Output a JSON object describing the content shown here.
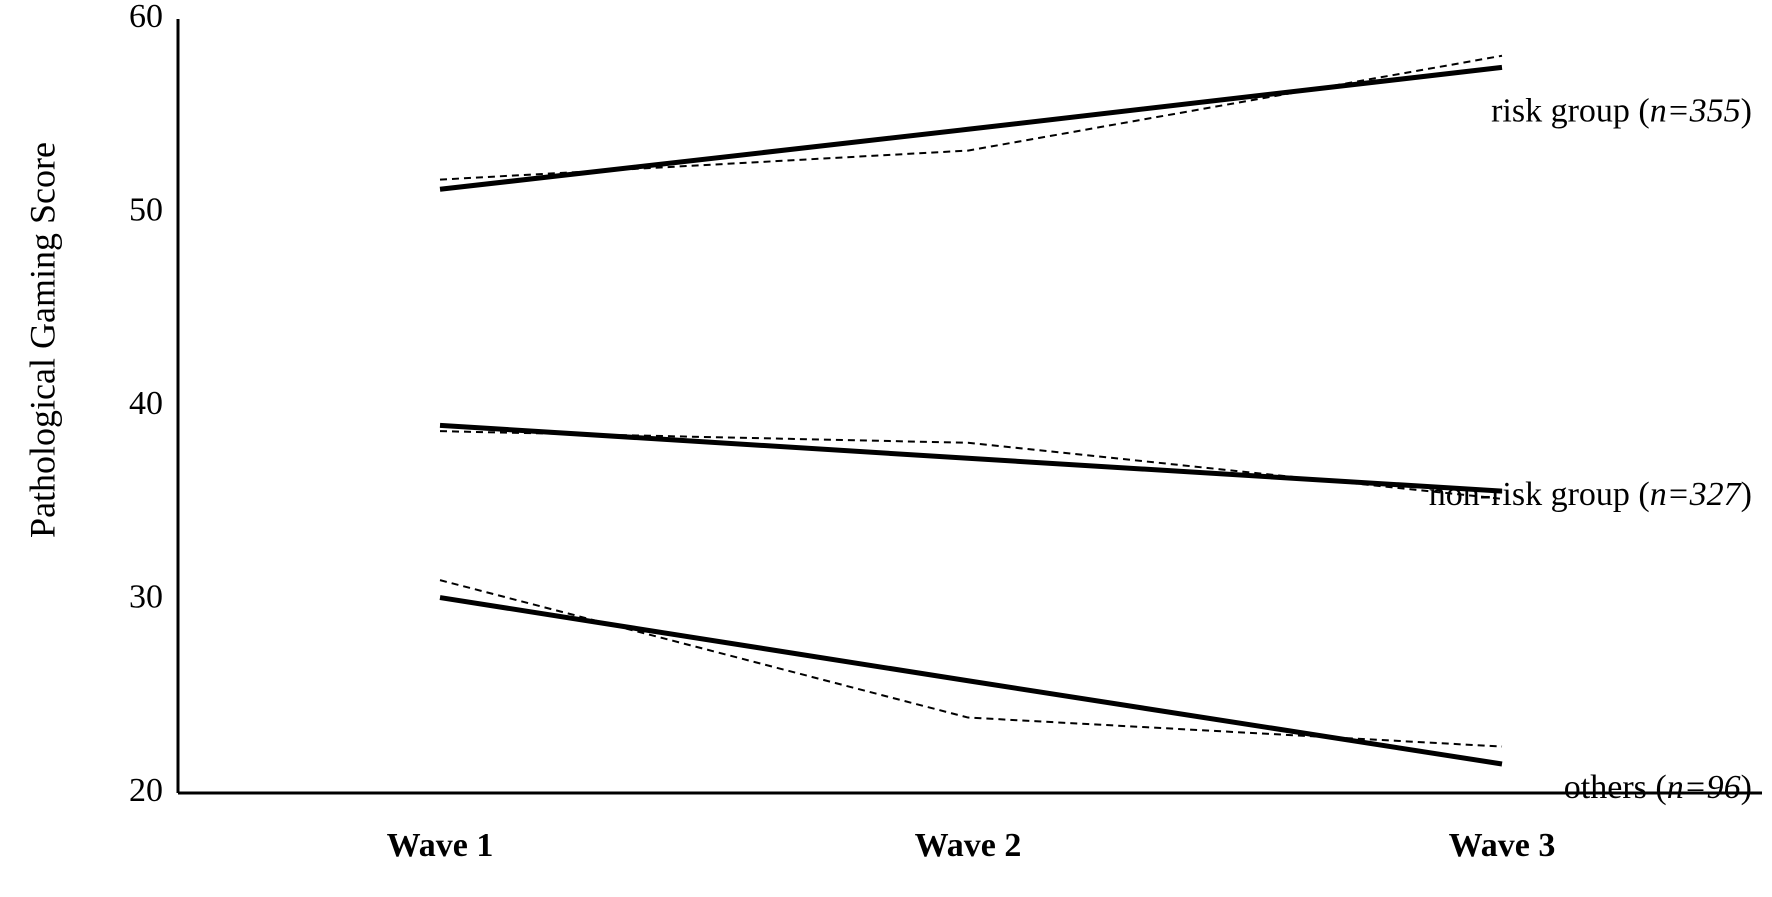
{
  "chart_data": {
    "type": "line",
    "ylabel": "Pathological Gaming Score",
    "ylim": [
      20,
      60
    ],
    "yticks": [
      20,
      30,
      40,
      50,
      60
    ],
    "categories": [
      "Wave 1",
      "Wave 2",
      "Wave 3"
    ],
    "series": [
      {
        "name": "risk group",
        "n_label": "n=355",
        "fitted": [
          51.2,
          54.3,
          57.5
        ],
        "observed": [
          51.7,
          53.2,
          58.1
        ]
      },
      {
        "name": "non-risk group",
        "n_label": "n=327",
        "fitted": [
          39.0,
          37.3,
          35.6
        ],
        "observed": [
          38.7,
          38.1,
          35.2
        ]
      },
      {
        "name": "others",
        "n_label": "n=96",
        "fitted": [
          30.1,
          25.8,
          21.5
        ],
        "observed": [
          31.0,
          23.9,
          22.4
        ]
      }
    ]
  }
}
